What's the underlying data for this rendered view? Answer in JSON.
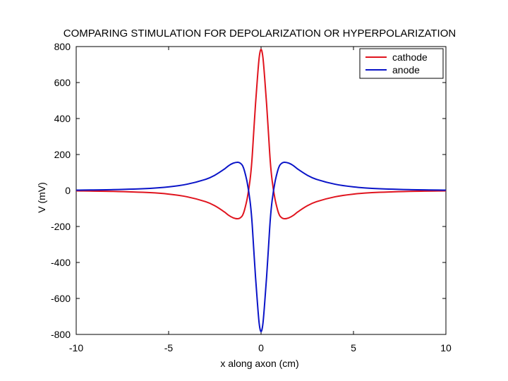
{
  "chart_data": {
    "type": "line",
    "title": "COMPARING STIMULATION FOR DEPOLARIZATION OR HYPERPOLARIZATION",
    "xlabel": "x along axon (cm)",
    "ylabel": "V (mV)",
    "xlim": [
      -10,
      10
    ],
    "ylim": [
      -800,
      800
    ],
    "xticks": [
      -10,
      -5,
      0,
      5,
      10
    ],
    "xtick_labels": [
      "-10",
      "-5",
      "0",
      "5",
      "10"
    ],
    "yticks": [
      800,
      600,
      400,
      200,
      0,
      -200,
      -400,
      -600,
      -800
    ],
    "ytick_labels": [
      "800",
      "600",
      "400",
      "200",
      "0",
      "-200",
      "-400",
      "-600",
      "-800"
    ],
    "grid": false,
    "legend_position": "top-right",
    "series": [
      {
        "name": "cathode",
        "color": "#e0141e",
        "x": [
          -10,
          -8,
          -6,
          -5,
          -4,
          -3,
          -2.5,
          -2,
          -1.75,
          -1.5,
          -1.25,
          -1.1,
          -1,
          -0.9,
          -0.75,
          -0.6,
          -0.5,
          -0.4,
          -0.3,
          -0.2,
          -0.1,
          0,
          0.1,
          0.2,
          0.3,
          0.4,
          0.5,
          0.6,
          0.75,
          0.9,
          1,
          1.1,
          1.25,
          1.5,
          1.75,
          2,
          2.5,
          3,
          4,
          5,
          6,
          8,
          10
        ],
        "y": [
          -2,
          -5,
          -12,
          -20,
          -35,
          -62,
          -85,
          -118,
          -138,
          -152,
          -157,
          -150,
          -138,
          -110,
          -45,
          55,
          160,
          320,
          480,
          620,
          740,
          785,
          740,
          620,
          480,
          320,
          160,
          55,
          -45,
          -110,
          -138,
          -150,
          -157,
          -152,
          -138,
          -118,
          -85,
          -62,
          -35,
          -20,
          -12,
          -5,
          -2
        ]
      },
      {
        "name": "anode",
        "color": "#0a14c8",
        "x": [
          -10,
          -8,
          -6,
          -5,
          -4,
          -3,
          -2.5,
          -2,
          -1.75,
          -1.5,
          -1.25,
          -1.1,
          -1,
          -0.9,
          -0.75,
          -0.6,
          -0.5,
          -0.4,
          -0.3,
          -0.2,
          -0.1,
          0,
          0.1,
          0.2,
          0.3,
          0.4,
          0.5,
          0.6,
          0.75,
          0.9,
          1,
          1.1,
          1.25,
          1.5,
          1.75,
          2,
          2.5,
          3,
          4,
          5,
          6,
          8,
          10
        ],
        "y": [
          2,
          5,
          12,
          20,
          35,
          62,
          85,
          118,
          138,
          152,
          157,
          150,
          138,
          110,
          45,
          -55,
          -160,
          -320,
          -480,
          -620,
          -740,
          -785,
          -740,
          -620,
          -480,
          -320,
          -160,
          -55,
          45,
          110,
          138,
          150,
          157,
          152,
          138,
          118,
          85,
          62,
          35,
          20,
          12,
          5,
          2
        ]
      }
    ]
  }
}
